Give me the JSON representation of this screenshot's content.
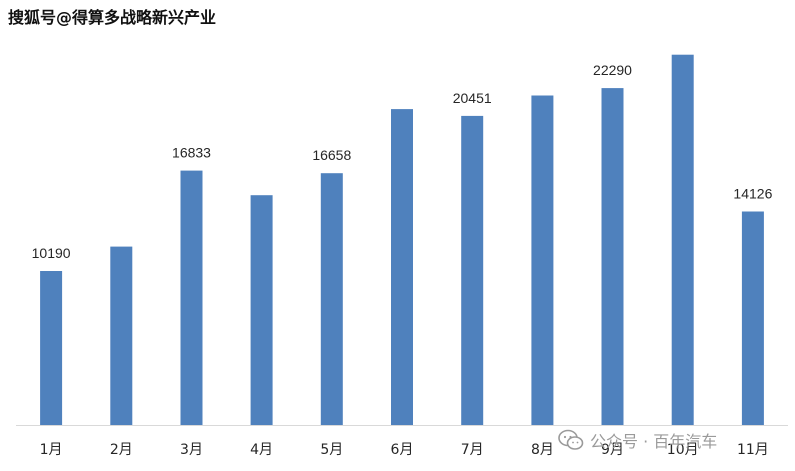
{
  "watermark_top": "搜狐号@得算多战略新兴产业",
  "watermark_bottom": "公众号 · 百年汽车",
  "colors": {
    "bar": "#4f81bd",
    "axis": "#d9d9d9",
    "text": "#262626"
  },
  "chart_data": {
    "type": "bar",
    "categories": [
      "1月",
      "2月",
      "3月",
      "4月",
      "5月",
      "6月",
      "7月",
      "8月",
      "9月",
      "10月",
      "11月"
    ],
    "values": [
      10190,
      11800,
      16833,
      15200,
      16658,
      20900,
      20451,
      21800,
      22290,
      24500,
      14126
    ],
    "data_labels": [
      "10190",
      "",
      "16833",
      "",
      "16658",
      "",
      "20451",
      "",
      "22290",
      "",
      "14126"
    ],
    "title": "",
    "xlabel": "",
    "ylabel": "",
    "ylim": [
      0,
      26000
    ],
    "grid": false,
    "legend": "none"
  }
}
